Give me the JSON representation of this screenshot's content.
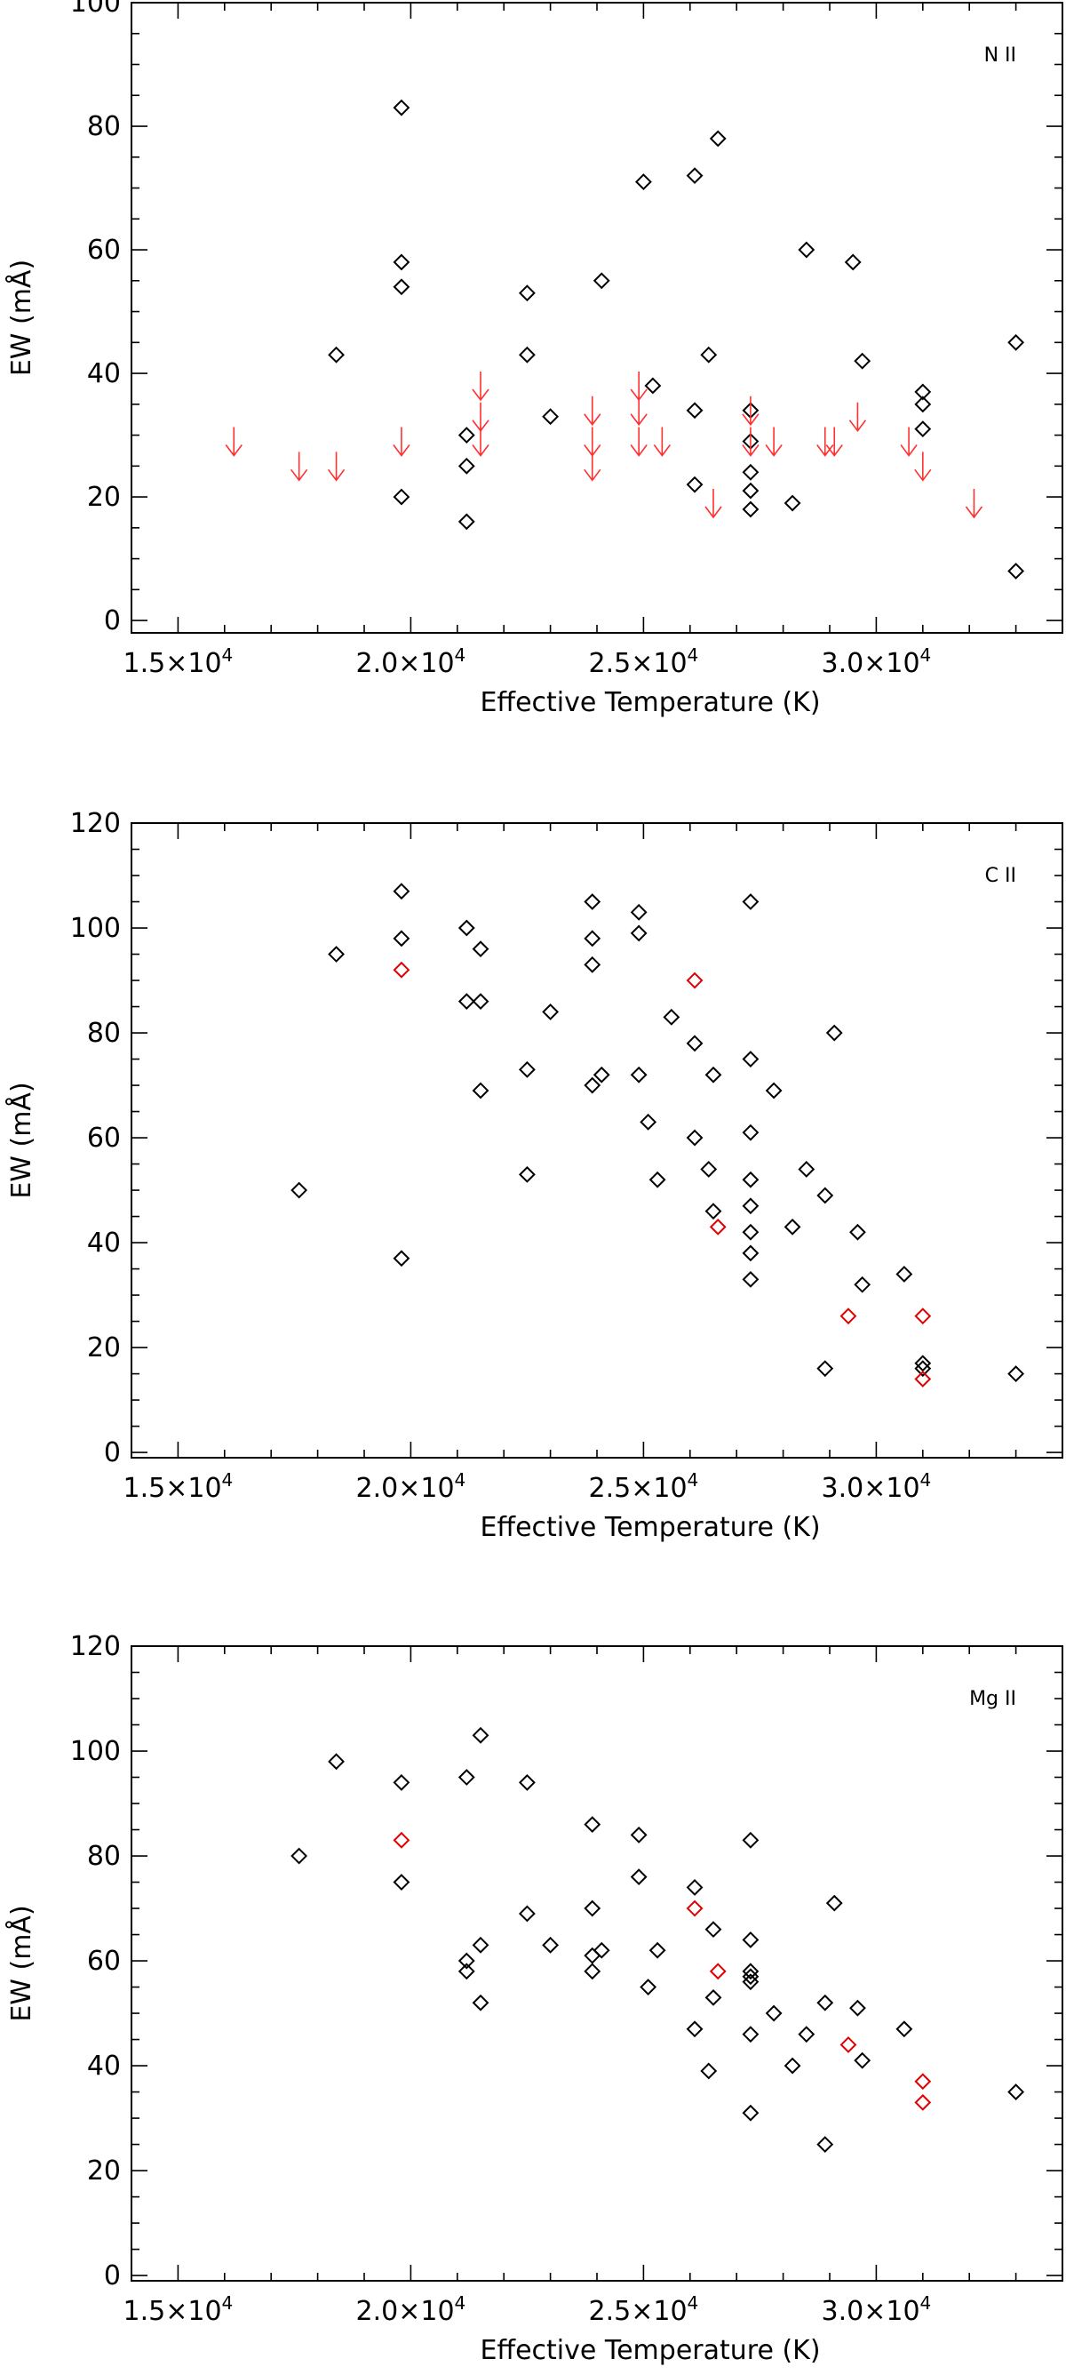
{
  "chart_data": [
    {
      "type": "scatter",
      "label": "N II",
      "xlabel": "Effective Temperature (K)",
      "ylabel": "EW (mÅ)",
      "xlim": [
        14000,
        34000
      ],
      "ylim": [
        -2,
        100
      ],
      "xticks": [
        15000,
        20000,
        25000,
        30000
      ],
      "xtick_labels": [
        "1.5×10^4",
        "2.0×10^4",
        "2.5×10^4",
        "3.0×10^4"
      ],
      "yticks": [
        0,
        20,
        40,
        60,
        80,
        100
      ],
      "ytick_labels": [
        "0",
        "20",
        "40",
        "60",
        "80",
        "100"
      ],
      "series": [
        {
          "marker": "diamond",
          "color": "#000000",
          "points": [
            [
              18400,
              43
            ],
            [
              19800,
              83
            ],
            [
              19800,
              58
            ],
            [
              19800,
              54
            ],
            [
              19800,
              20
            ],
            [
              21200,
              30
            ],
            [
              21200,
              25
            ],
            [
              21200,
              16
            ],
            [
              22500,
              53
            ],
            [
              22500,
              43
            ],
            [
              23000,
              33
            ],
            [
              24100,
              55
            ],
            [
              25000,
              71
            ],
            [
              25200,
              38
            ],
            [
              26100,
              72
            ],
            [
              26100,
              34
            ],
            [
              26100,
              22
            ],
            [
              26400,
              43
            ],
            [
              26600,
              78
            ],
            [
              27300,
              34
            ],
            [
              27300,
              29
            ],
            [
              27300,
              24
            ],
            [
              27300,
              21
            ],
            [
              27300,
              18
            ],
            [
              28200,
              19
            ],
            [
              28500,
              60
            ],
            [
              29500,
              58
            ],
            [
              29700,
              42
            ],
            [
              31000,
              37
            ],
            [
              31000,
              35
            ],
            [
              31000,
              31
            ],
            [
              33000,
              45
            ],
            [
              33000,
              8
            ]
          ]
        },
        {
          "marker": "upper-limit-arrow",
          "color": "#ff3030",
          "points": [
            [
              16200,
              29
            ],
            [
              17600,
              25
            ],
            [
              18400,
              25
            ],
            [
              19800,
              29
            ],
            [
              21500,
              38
            ],
            [
              21500,
              33
            ],
            [
              21500,
              29
            ],
            [
              23900,
              34
            ],
            [
              23900,
              29
            ],
            [
              23900,
              25
            ],
            [
              24900,
              38
            ],
            [
              24900,
              34
            ],
            [
              24900,
              29
            ],
            [
              25400,
              29
            ],
            [
              26500,
              19
            ],
            [
              27300,
              34
            ],
            [
              27300,
              29
            ],
            [
              27800,
              29
            ],
            [
              28900,
              29
            ],
            [
              29100,
              29
            ],
            [
              29600,
              33
            ],
            [
              30700,
              29
            ],
            [
              31000,
              25
            ],
            [
              32100,
              19
            ]
          ]
        }
      ]
    },
    {
      "type": "scatter",
      "label": "C II",
      "xlabel": "Effective Temperature (K)",
      "ylabel": "EW (mÅ)",
      "xlim": [
        14000,
        34000
      ],
      "ylim": [
        -1,
        120
      ],
      "xticks": [
        15000,
        20000,
        25000,
        30000
      ],
      "xtick_labels": [
        "1.5×10^4",
        "2.0×10^4",
        "2.5×10^4",
        "3.0×10^4"
      ],
      "yticks": [
        0,
        20,
        40,
        60,
        80,
        100,
        120
      ],
      "ytick_labels": [
        "0",
        "20",
        "40",
        "60",
        "80",
        "100",
        "120"
      ],
      "series": [
        {
          "marker": "diamond",
          "color": "#000000",
          "points": [
            [
              17600,
              50
            ],
            [
              18400,
              95
            ],
            [
              19800,
              107
            ],
            [
              19800,
              98
            ],
            [
              19800,
              37
            ],
            [
              21200,
              100
            ],
            [
              21200,
              86
            ],
            [
              21500,
              96
            ],
            [
              21500,
              86
            ],
            [
              21500,
              69
            ],
            [
              22500,
              73
            ],
            [
              22500,
              53
            ],
            [
              23000,
              84
            ],
            [
              23900,
              105
            ],
            [
              23900,
              98
            ],
            [
              23900,
              93
            ],
            [
              23900,
              70
            ],
            [
              24100,
              72
            ],
            [
              24900,
              103
            ],
            [
              24900,
              99
            ],
            [
              24900,
              72
            ],
            [
              25100,
              63
            ],
            [
              25300,
              52
            ],
            [
              25600,
              83
            ],
            [
              26100,
              78
            ],
            [
              26100,
              60
            ],
            [
              26400,
              54
            ],
            [
              26500,
              72
            ],
            [
              26500,
              46
            ],
            [
              27300,
              105
            ],
            [
              27300,
              75
            ],
            [
              27300,
              61
            ],
            [
              27300,
              52
            ],
            [
              27300,
              47
            ],
            [
              27300,
              42
            ],
            [
              27300,
              38
            ],
            [
              27300,
              33
            ],
            [
              27800,
              69
            ],
            [
              28200,
              43
            ],
            [
              28500,
              54
            ],
            [
              28900,
              49
            ],
            [
              28900,
              16
            ],
            [
              29100,
              80
            ],
            [
              29600,
              42
            ],
            [
              29700,
              32
            ],
            [
              30600,
              34
            ],
            [
              31000,
              17
            ],
            [
              31000,
              16
            ],
            [
              33000,
              15
            ]
          ]
        },
        {
          "marker": "diamond",
          "color": "#e00000",
          "points": [
            [
              19800,
              92
            ],
            [
              26100,
              90
            ],
            [
              26600,
              43
            ],
            [
              29400,
              26
            ],
            [
              31000,
              26
            ],
            [
              31000,
              14
            ]
          ]
        }
      ]
    },
    {
      "type": "scatter",
      "label": "Mg II",
      "xlabel": "Effective Temperature (K)",
      "ylabel": "EW (mÅ)",
      "xlim": [
        14000,
        34000
      ],
      "ylim": [
        -1,
        120
      ],
      "xticks": [
        15000,
        20000,
        25000,
        30000
      ],
      "xtick_labels": [
        "1.5×10^4",
        "2.0×10^4",
        "2.5×10^4",
        "3.0×10^4"
      ],
      "yticks": [
        0,
        20,
        40,
        60,
        80,
        100,
        120
      ],
      "ytick_labels": [
        "0",
        "20",
        "40",
        "60",
        "80",
        "100",
        "120"
      ],
      "series": [
        {
          "marker": "diamond",
          "color": "#000000",
          "points": [
            [
              17600,
              80
            ],
            [
              18400,
              98
            ],
            [
              19800,
              94
            ],
            [
              19800,
              75
            ],
            [
              21200,
              95
            ],
            [
              21200,
              60
            ],
            [
              21200,
              58
            ],
            [
              21500,
              103
            ],
            [
              21500,
              63
            ],
            [
              21500,
              52
            ],
            [
              22500,
              94
            ],
            [
              22500,
              69
            ],
            [
              23000,
              63
            ],
            [
              23900,
              86
            ],
            [
              23900,
              70
            ],
            [
              23900,
              61
            ],
            [
              23900,
              58
            ],
            [
              24100,
              62
            ],
            [
              24900,
              84
            ],
            [
              24900,
              76
            ],
            [
              25100,
              55
            ],
            [
              25300,
              62
            ],
            [
              26100,
              74
            ],
            [
              26100,
              47
            ],
            [
              26400,
              39
            ],
            [
              26500,
              66
            ],
            [
              26500,
              53
            ],
            [
              27300,
              83
            ],
            [
              27300,
              64
            ],
            [
              27300,
              58
            ],
            [
              27300,
              57
            ],
            [
              27300,
              56
            ],
            [
              27300,
              46
            ],
            [
              27300,
              31
            ],
            [
              27800,
              50
            ],
            [
              28200,
              40
            ],
            [
              28500,
              46
            ],
            [
              28900,
              52
            ],
            [
              28900,
              25
            ],
            [
              29100,
              71
            ],
            [
              29600,
              51
            ],
            [
              29700,
              41
            ],
            [
              30600,
              47
            ],
            [
              33000,
              35
            ]
          ]
        },
        {
          "marker": "diamond",
          "color": "#e00000",
          "points": [
            [
              19800,
              83
            ],
            [
              26100,
              70
            ],
            [
              26600,
              58
            ],
            [
              29400,
              44
            ],
            [
              31000,
              37
            ],
            [
              31000,
              33
            ]
          ]
        }
      ]
    }
  ]
}
